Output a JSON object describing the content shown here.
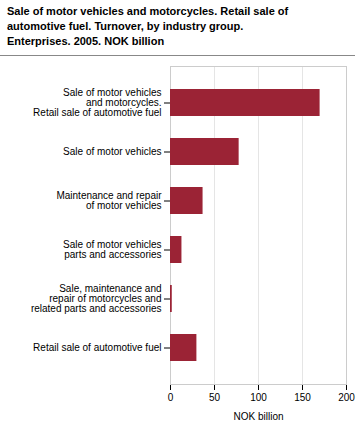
{
  "chart_data": {
    "type": "bar",
    "title": "Sale of motor vehicles and motorcycles. Retail sale of\nautomotive fuel. Turnover, by industry group.\nEnterprises. 2005. NOK billion",
    "categories": [
      "Retail sale of automotive fuel",
      "Sale, maintenance and\nrepair of motorcycles and\nrelated parts and accessories",
      "Sale of motor vehicles\nparts and accessories",
      "Maintenance and repair\nof motor vehicles",
      "Sale of motor vehicles",
      "Sale of motor vehicles\nand motorcycles.\nRetail sale of automotive fuel"
    ],
    "values": [
      30,
      2,
      13,
      37,
      78,
      170
    ],
    "color": "#9b2335",
    "orientation": "horizontal",
    "xlabel": "NOK billion",
    "xlim": [
      0,
      200
    ],
    "xticks": [
      0,
      50,
      100,
      150,
      200
    ],
    "grid": true
  }
}
